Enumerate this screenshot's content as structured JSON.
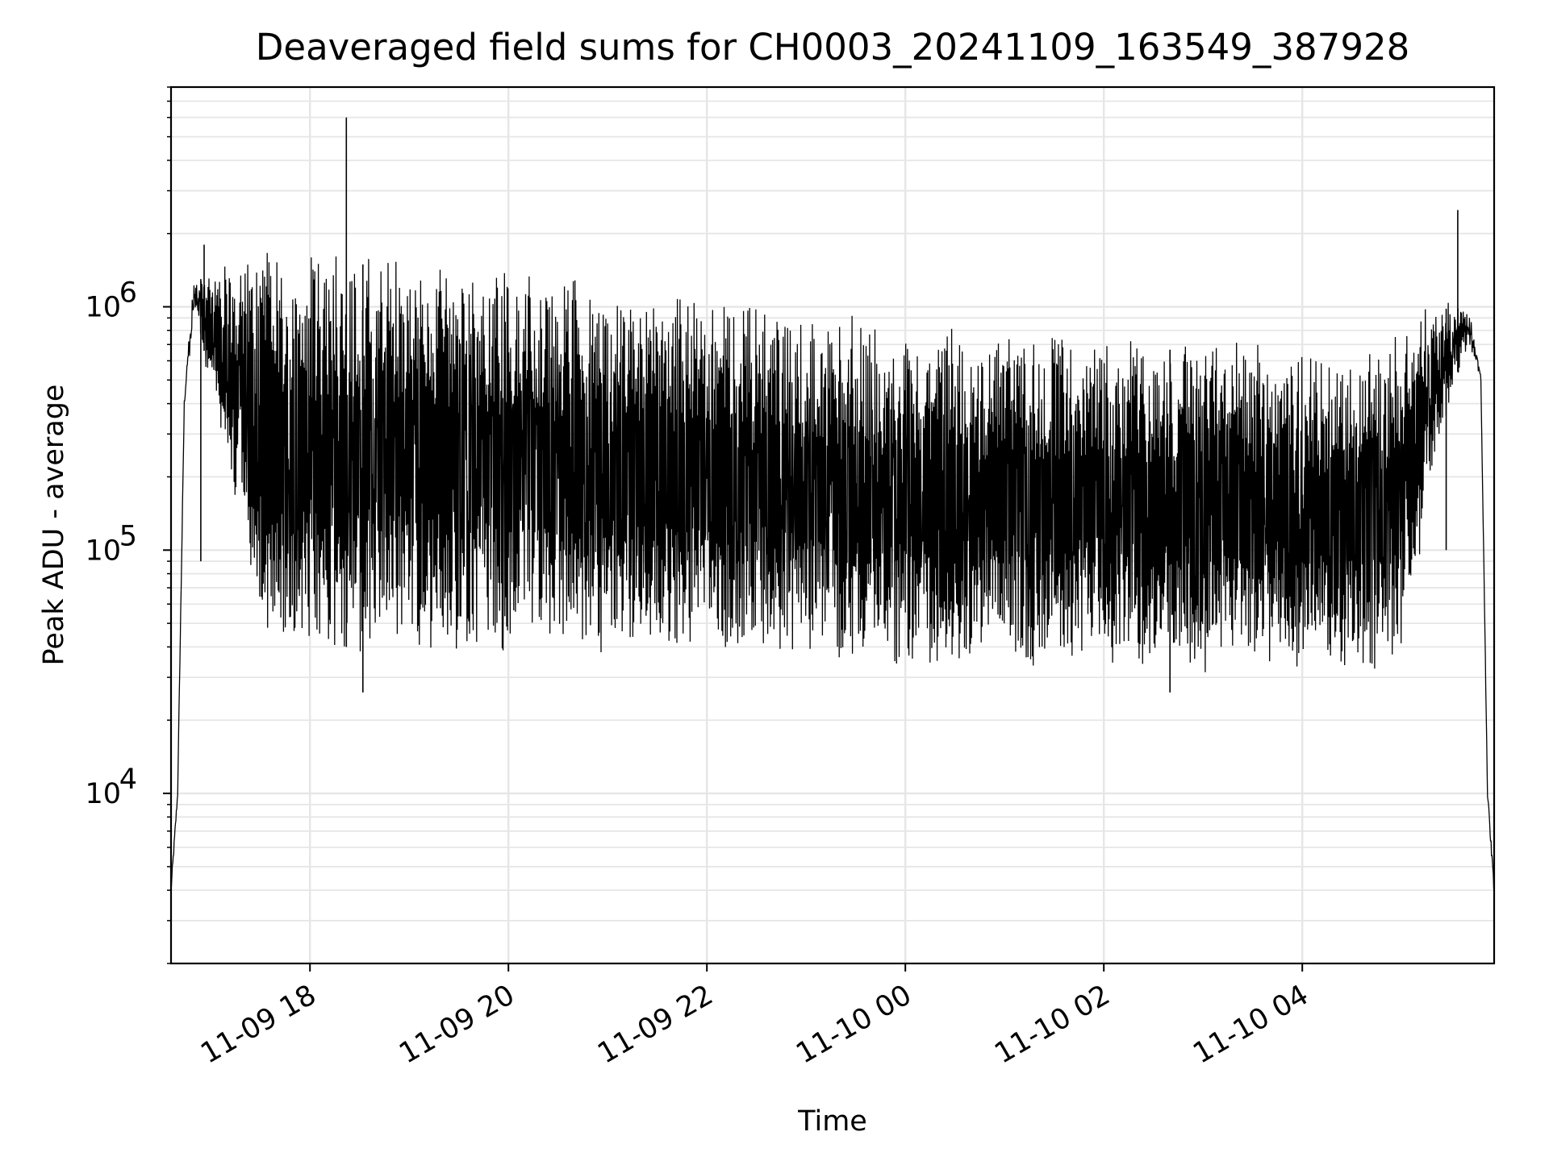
{
  "chart_data": {
    "type": "line",
    "title": "Deaveraged field sums for CH0003_20241109_163549_387928",
    "xlabel": "Time",
    "ylabel": "Peak ADU - average",
    "x_scale": "time",
    "y_scale": "log",
    "xlim": [
      "2024-11-09 16:36",
      "2024-11-10 05:56"
    ],
    "ylim": [
      2000,
      8000000
    ],
    "grid": true,
    "legend": "none",
    "line_color": "#000000",
    "x_ticks": [
      {
        "value": "2024-11-09 18:00",
        "label": "11-09 18"
      },
      {
        "value": "2024-11-09 20:00",
        "label": "11-09 20"
      },
      {
        "value": "2024-11-09 22:00",
        "label": "11-09 22"
      },
      {
        "value": "2024-11-10 00:00",
        "label": "11-10 00"
      },
      {
        "value": "2024-11-10 02:00",
        "label": "11-10 02"
      },
      {
        "value": "2024-11-10 04:00",
        "label": "11-10 04"
      }
    ],
    "y_ticks": [
      {
        "value": 10000,
        "base": "10",
        "exp": "4"
      },
      {
        "value": 100000,
        "base": "10",
        "exp": "5"
      },
      {
        "value": 1000000,
        "base": "10",
        "exp": "6"
      }
    ],
    "series": [
      {
        "upper_envelope": {
          "x": [
            "2024-11-09 16:36",
            "2024-11-09 16:40",
            "2024-11-09 16:44",
            "2024-11-09 16:50",
            "2024-11-09 17:00",
            "2024-11-09 17:30",
            "2024-11-09 18:00",
            "2024-11-09 18:30",
            "2024-11-09 19:00",
            "2024-11-09 19:30",
            "2024-11-09 20:00",
            "2024-11-09 21:00",
            "2024-11-09 22:00",
            "2024-11-09 23:00",
            "2024-11-10 00:00",
            "2024-11-10 01:00",
            "2024-11-10 02:00",
            "2024-11-10 03:00",
            "2024-11-10 04:00",
            "2024-11-10 04:30",
            "2024-11-10 05:00",
            "2024-11-10 05:20",
            "2024-11-10 05:40",
            "2024-11-10 05:48",
            "2024-11-10 05:52",
            "2024-11-10 05:56"
          ],
          "y": [
            4000,
            10000,
            400000,
            1300000,
            1300000,
            1500000,
            1500000,
            1500000,
            1400000,
            1400000,
            1300000,
            1100000,
            1000000,
            850000,
            750000,
            700000,
            700000,
            650000,
            600000,
            550000,
            700000,
            1000000,
            950000,
            500000,
            10000,
            4000
          ]
        },
        "lower_envelope": {
          "x": [
            "2024-11-09 16:36",
            "2024-11-09 16:40",
            "2024-11-09 16:44",
            "2024-11-09 16:50",
            "2024-11-09 17:00",
            "2024-11-09 17:30",
            "2024-11-09 18:00",
            "2024-11-09 18:30",
            "2024-11-09 19:00",
            "2024-11-09 19:30",
            "2024-11-09 20:00",
            "2024-11-09 21:00",
            "2024-11-09 22:00",
            "2024-11-09 23:00",
            "2024-11-10 00:00",
            "2024-11-10 01:00",
            "2024-11-10 02:00",
            "2024-11-10 03:00",
            "2024-11-10 04:00",
            "2024-11-10 04:30",
            "2024-11-10 05:00",
            "2024-11-10 05:20",
            "2024-11-10 05:40",
            "2024-11-10 05:48",
            "2024-11-10 05:52",
            "2024-11-10 05:56"
          ],
          "y": [
            4000,
            10000,
            400000,
            1000000,
            500000,
            55000,
            40000,
            40000,
            45000,
            42000,
            42000,
            42000,
            42000,
            40000,
            38000,
            38000,
            37000,
            36000,
            36000,
            35000,
            38000,
            250000,
            750000,
            500000,
            10000,
            4000
          ]
        },
        "spikes": [
          {
            "x": "2024-11-09 18:22",
            "y": 6000000
          },
          {
            "x": "2024-11-10 05:34",
            "y": 2500000
          },
          {
            "x": "2024-11-09 16:56",
            "y": 1800000
          }
        ],
        "dips": [
          {
            "x": "2024-11-09 16:54",
            "y": 90000
          },
          {
            "x": "2024-11-09 18:32",
            "y": 26000
          },
          {
            "x": "2024-11-10 02:40",
            "y": 26000
          },
          {
            "x": "2024-11-10 05:27",
            "y": 100000
          }
        ]
      }
    ]
  }
}
